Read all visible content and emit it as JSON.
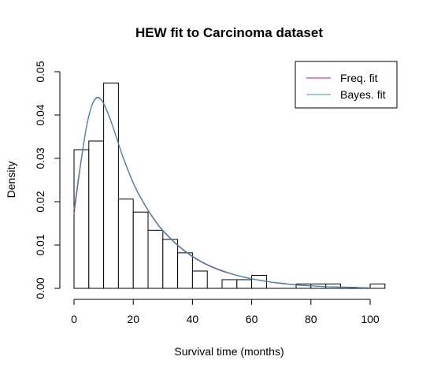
{
  "chart_data": {
    "type": "bar",
    "title": "HEW fit to Carcinoma dataset",
    "xlabel": "Survival time (months)",
    "ylabel": "Density",
    "xlim": [
      0,
      105
    ],
    "ylim": [
      0,
      0.05
    ],
    "x_ticks": [
      "0",
      "20",
      "40",
      "60",
      "80",
      "100"
    ],
    "y_ticks": [
      "0.00",
      "0.01",
      "0.02",
      "0.03",
      "0.04",
      "0.05"
    ],
    "histogram": {
      "bin_width": 5,
      "bins": [
        {
          "from": 0,
          "to": 5,
          "density": 0.032
        },
        {
          "from": 5,
          "to": 10,
          "density": 0.034
        },
        {
          "from": 10,
          "to": 15,
          "density": 0.0474
        },
        {
          "from": 15,
          "to": 20,
          "density": 0.0206
        },
        {
          "from": 20,
          "to": 25,
          "density": 0.0176
        },
        {
          "from": 25,
          "to": 30,
          "density": 0.0134
        },
        {
          "from": 30,
          "to": 35,
          "density": 0.0113
        },
        {
          "from": 35,
          "to": 40,
          "density": 0.0082
        },
        {
          "from": 40,
          "to": 45,
          "density": 0.004
        },
        {
          "from": 45,
          "to": 50,
          "density": 0.0
        },
        {
          "from": 50,
          "to": 55,
          "density": 0.002
        },
        {
          "from": 55,
          "to": 60,
          "density": 0.002
        },
        {
          "from": 60,
          "to": 65,
          "density": 0.003
        },
        {
          "from": 65,
          "to": 70,
          "density": 0.0
        },
        {
          "from": 70,
          "to": 75,
          "density": 0.0
        },
        {
          "from": 75,
          "to": 80,
          "density": 0.001
        },
        {
          "from": 80,
          "to": 85,
          "density": 0.001
        },
        {
          "from": 85,
          "to": 90,
          "density": 0.001
        },
        {
          "from": 90,
          "to": 95,
          "density": 0.0
        },
        {
          "from": 95,
          "to": 100,
          "density": 0.0
        },
        {
          "from": 100,
          "to": 105,
          "density": 0.001
        }
      ]
    },
    "series": [
      {
        "name": "Freq. fit",
        "color": "#c0204d",
        "x": [
          0,
          1,
          2,
          3,
          4,
          5,
          6,
          7,
          8,
          9,
          10,
          12,
          14,
          16,
          18,
          20,
          22,
          25,
          28,
          30,
          35,
          40,
          45,
          50,
          55,
          60,
          65,
          70,
          75,
          80,
          85,
          90,
          95,
          100
        ],
        "y": [
          0.0172,
          0.0225,
          0.0275,
          0.0322,
          0.0365,
          0.0398,
          0.0422,
          0.0436,
          0.0441,
          0.0437,
          0.0427,
          0.0395,
          0.0355,
          0.0313,
          0.0276,
          0.0243,
          0.0215,
          0.018,
          0.015,
          0.0133,
          0.0099,
          0.0073,
          0.0054,
          0.004,
          0.003,
          0.0022,
          0.0016,
          0.0011,
          0.0008,
          0.0006,
          0.0004,
          0.0003,
          0.0002,
          0.0001
        ]
      },
      {
        "name": "Bayes. fit",
        "color": "#3a8fb7",
        "x": [
          0,
          1,
          2,
          3,
          4,
          5,
          6,
          7,
          8,
          9,
          10,
          12,
          14,
          16,
          18,
          20,
          22,
          25,
          28,
          30,
          35,
          40,
          45,
          50,
          55,
          60,
          65,
          70,
          75,
          80,
          85,
          90,
          95,
          100
        ],
        "y": [
          0.0182,
          0.0231,
          0.0279,
          0.0324,
          0.0365,
          0.0398,
          0.0421,
          0.0435,
          0.044,
          0.0436,
          0.0426,
          0.0394,
          0.0355,
          0.0314,
          0.0277,
          0.0244,
          0.0216,
          0.0181,
          0.0151,
          0.0134,
          0.01,
          0.0074,
          0.0055,
          0.0041,
          0.003,
          0.0022,
          0.0016,
          0.0012,
          0.0008,
          0.0006,
          0.0004,
          0.0003,
          0.0002,
          0.0001
        ]
      }
    ],
    "legend": {
      "position": "top-right",
      "entries": [
        "Freq. fit",
        "Bayes. fit"
      ]
    }
  }
}
